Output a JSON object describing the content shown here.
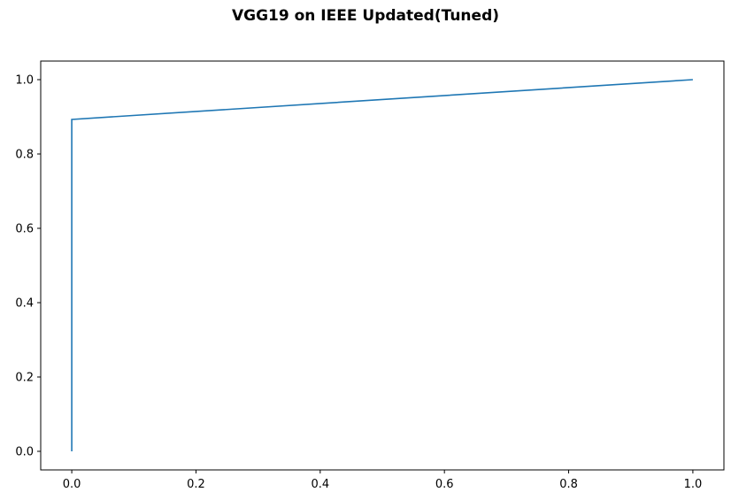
{
  "chart_data": {
    "type": "line",
    "title": "VGG19 on IEEE Updated(Tuned)",
    "xlabel": "",
    "ylabel": "",
    "xlim": [
      -0.05,
      1.05
    ],
    "ylim": [
      -0.05,
      1.05
    ],
    "xticks": [
      0.0,
      0.2,
      0.4,
      0.6,
      0.8,
      1.0
    ],
    "xtick_labels": [
      "0.0",
      "0.2",
      "0.4",
      "0.6",
      "0.8",
      "1.0"
    ],
    "yticks": [
      0.0,
      0.2,
      0.4,
      0.6,
      0.8,
      1.0
    ],
    "ytick_labels": [
      "0.0",
      "0.2",
      "0.4",
      "0.6",
      "0.8",
      "1.0"
    ],
    "grid": false,
    "legend": false,
    "series": [
      {
        "color": "#1f77b4",
        "x": [
          0.0,
          0.0,
          1.0
        ],
        "y": [
          0.0,
          0.893,
          1.0
        ]
      }
    ]
  }
}
